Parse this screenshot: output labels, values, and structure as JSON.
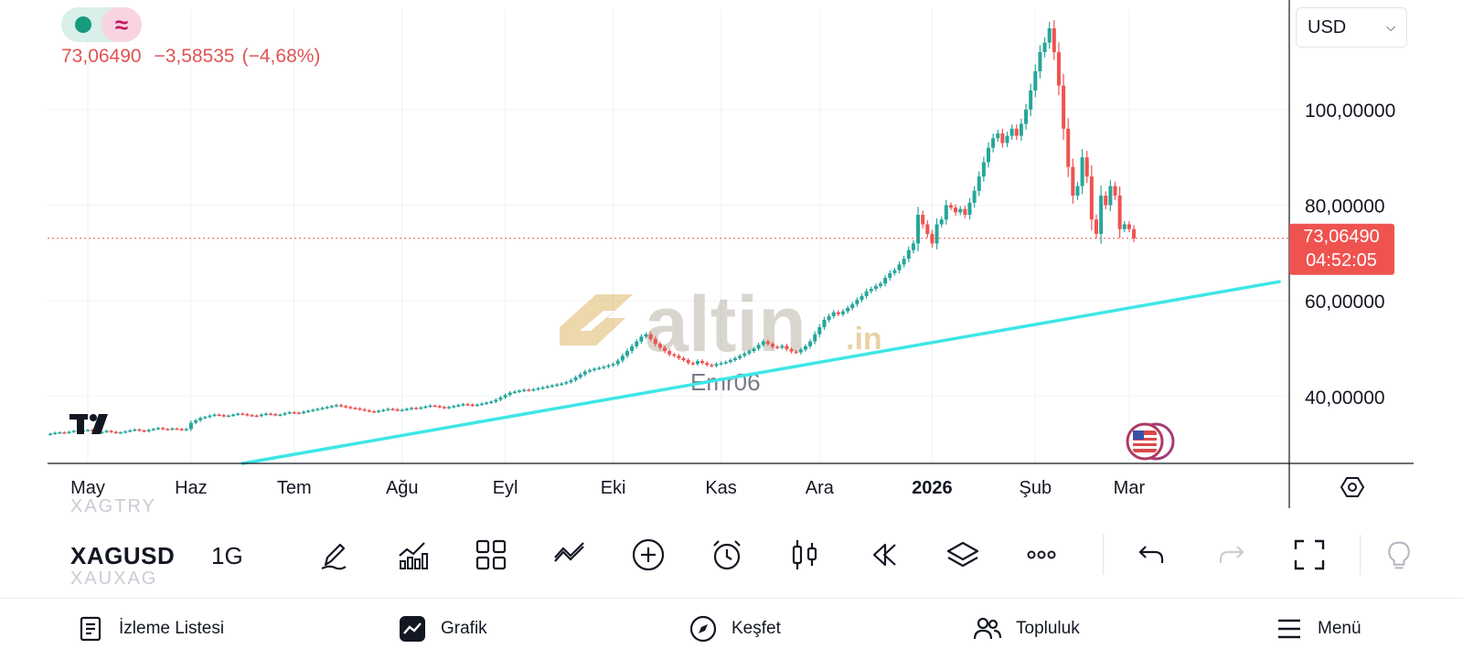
{
  "symbol_bar": {
    "symbol": "XAGUSD",
    "interval": "1G",
    "prev_symbol": "XAGTRY",
    "next_symbol": "XAUXAG"
  },
  "quote": {
    "price": "73,06490",
    "change": "−3,58535",
    "change_pct": "(−4,68%)",
    "price_label": "73,06490",
    "countdown": "04:52:05"
  },
  "currency_select": {
    "value": "USD"
  },
  "watermark": {
    "brand": "altin",
    "brand_suffix": ".in",
    "user": "Emr06"
  },
  "colors": {
    "up": "#26a69a",
    "down": "#ef5350",
    "trendline": "#3ee6e6",
    "price_line": "#ef5350"
  },
  "icons": [
    "logo-icon",
    "flag-icon",
    "settings-icon",
    "draw-icon",
    "indicators-icon",
    "templates-icon",
    "compare-icon",
    "add-icon",
    "alert-icon",
    "chart-type-icon",
    "replay-icon",
    "layers-icon",
    "more-icon",
    "undo-icon",
    "redo-icon",
    "fullscreen-icon",
    "watchlist-icon",
    "chart-icon",
    "explore-icon",
    "community-icon",
    "menu-icon"
  ],
  "bottom_nav": {
    "watchlist": "İzleme Listesi",
    "chart": "Grafik",
    "explore": "Keşfet",
    "community": "Topluluk",
    "menu": "Menü"
  },
  "chart_data": {
    "type": "candlestick",
    "y_range": [
      26,
      121
    ],
    "y_ticks": [
      {
        "value": 100,
        "label": "100,00000"
      },
      {
        "value": 80,
        "label": "80,00000"
      },
      {
        "value": 60,
        "label": "60,00000"
      },
      {
        "value": 40,
        "label": "40,00000"
      }
    ],
    "x_ticks": [
      {
        "label": "May",
        "bar": 8
      },
      {
        "label": "Haz",
        "bar": 30
      },
      {
        "label": "Tem",
        "bar": 52
      },
      {
        "label": "Ağu",
        "bar": 75
      },
      {
        "label": "Eyl",
        "bar": 97
      },
      {
        "label": "Eki",
        "bar": 120
      },
      {
        "label": "Kas",
        "bar": 143
      },
      {
        "label": "Ara",
        "bar": 164
      },
      {
        "label": "2026",
        "bar": 188,
        "bold": true
      },
      {
        "label": "Şub",
        "bar": 210
      },
      {
        "label": "Mar",
        "bar": 230
      }
    ],
    "last_price": 73.0649,
    "trendline": [
      {
        "bar": 41,
        "value": 26
      },
      {
        "bar": 262,
        "value": 64
      }
    ],
    "closes": [
      32.2,
      32.4,
      32.5,
      32.4,
      32.6,
      32.8,
      32.7,
      32.9,
      33.0,
      32.8,
      32.4,
      32.6,
      32.8,
      32.6,
      32.4,
      32.5,
      32.7,
      32.9,
      33.1,
      32.9,
      32.7,
      33.0,
      33.2,
      33.4,
      33.2,
      33.1,
      33.3,
      33.2,
      33.0,
      33.2,
      34.5,
      35.0,
      35.5,
      35.7,
      36.0,
      36.2,
      36.1,
      35.9,
      36.0,
      36.2,
      36.4,
      36.3,
      36.1,
      36.0,
      35.9,
      36.2,
      36.4,
      36.3,
      36.1,
      36.2,
      36.5,
      36.7,
      36.6,
      36.5,
      36.8,
      37.0,
      37.2,
      37.4,
      37.6,
      37.8,
      38.0,
      38.2,
      38.0,
      37.8,
      37.6,
      37.5,
      37.3,
      37.1,
      36.9,
      36.8,
      37.0,
      37.2,
      37.4,
      37.3,
      37.1,
      37.2,
      37.4,
      37.6,
      37.5,
      37.7,
      37.9,
      38.1,
      38.0,
      37.8,
      37.6,
      37.8,
      38.0,
      38.2,
      38.4,
      38.3,
      38.1,
      38.3,
      38.5,
      38.7,
      38.9,
      39.3,
      39.8,
      40.3,
      40.8,
      41.0,
      41.2,
      41.4,
      41.3,
      41.5,
      41.7,
      41.9,
      42.1,
      42.3,
      42.5,
      42.7,
      43.0,
      43.4,
      44.0,
      44.6,
      45.2,
      45.5,
      45.8,
      46.0,
      46.2,
      46.5,
      46.8,
      47.5,
      48.5,
      49.5,
      50.5,
      51.5,
      52.5,
      53.0,
      52.0,
      51.0,
      50.2,
      49.5,
      48.8,
      48.5,
      48.0,
      47.6,
      47.0,
      46.8,
      47.4,
      47.0,
      46.6,
      46.4,
      46.8,
      47.0,
      47.2,
      47.6,
      48.0,
      48.5,
      49.0,
      49.5,
      50.0,
      50.8,
      51.5,
      51.0,
      50.4,
      50.2,
      50.6,
      49.9,
      49.4,
      49.2,
      49.8,
      50.5,
      51.5,
      53.0,
      54.5,
      56.0,
      56.8,
      57.6,
      57.2,
      57.8,
      58.5,
      59.3,
      60.2,
      61.0,
      62.0,
      62.5,
      63.1,
      63.6,
      64.8,
      65.8,
      66.4,
      67.6,
      68.8,
      70.6,
      72.0,
      78.0,
      76.0,
      74.0,
      72.0,
      76.0,
      77.0,
      80.0,
      79.5,
      78.5,
      79.2,
      78.0,
      80.5,
      83.0,
      86.0,
      89.0,
      92.0,
      94.0,
      95.0,
      93.0,
      94.5,
      96.0,
      94.5,
      97.0,
      100.0,
      104.0,
      108.0,
      112.0,
      114.0,
      117.0,
      112.0,
      105.0,
      96.0,
      88.0,
      82.0,
      84.0,
      90.0,
      86.0,
      77.0,
      74.0,
      82.0,
      80.0,
      84.0,
      82.0,
      75.0,
      76.0,
      75.0,
      73.0649
    ]
  }
}
